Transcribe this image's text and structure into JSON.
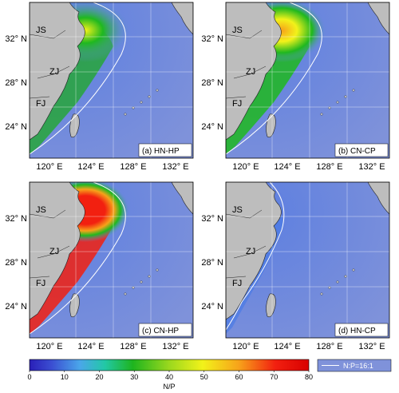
{
  "panels": [
    {
      "label": "(a) HN-HP",
      "scenario": "HN-HP"
    },
    {
      "label": "(b) CN-CP",
      "scenario": "CN-CP"
    },
    {
      "label": "(c) CN-HP",
      "scenario": "CN-HP"
    },
    {
      "label": "(d) HN-CP",
      "scenario": "HN-CP"
    }
  ],
  "map_labels": [
    "JS",
    "ZJ",
    "FJ"
  ],
  "lat_ticks": [
    "32° N",
    "28° N",
    "24° N"
  ],
  "lon_ticks": [
    "120° E",
    "124° E",
    "128° E",
    "132° E"
  ],
  "colorbar": {
    "label": "N/P",
    "min": 0,
    "max": 80,
    "ticks": [
      "0",
      "10",
      "20",
      "30",
      "40",
      "50",
      "60",
      "70",
      "80"
    ],
    "colors": [
      "#2a1fb8",
      "#3b5bd8",
      "#4aa0e8",
      "#25c9a0",
      "#1fb81f",
      "#9ddc1e",
      "#f2f21a",
      "#f7a21a",
      "#f22010",
      "#e00000"
    ]
  },
  "legend": {
    "contour_label": "N:P=16:1",
    "contour_color": "#ffffff"
  },
  "colors": {
    "land": "#bdbdbd",
    "ocean": "#6a86d8",
    "grid": "#ffffff"
  }
}
